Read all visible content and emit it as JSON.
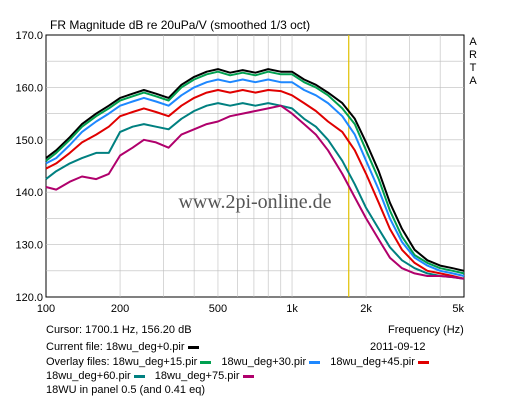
{
  "window": {
    "title": "FR Magnitude dB re 20uPa/V (smoothed 1/3 oct)",
    "side_tag": [
      "A",
      "R",
      "T",
      "A"
    ],
    "watermark": "www.2pi-online.de"
  },
  "footer": {
    "cursor": "Cursor: 1700.1 Hz, 156.20 dB",
    "xlabel": "Frequency (Hz)",
    "current_file_prefix": "Current file:",
    "date": "2011-09-12",
    "overlay_prefix": "Overlay files:",
    "info": "18WU in panel 0.5 (and 0.41 eq)"
  },
  "chart_data": {
    "type": "line",
    "title": "FR Magnitude dB re 20uPa/V (smoothed 1/3 oct)",
    "xlabel": "Frequency (Hz)",
    "ylabel": "",
    "x_scale": "log",
    "xlim": [
      100,
      5000
    ],
    "ylim": [
      120,
      170
    ],
    "grid": true,
    "x_ticks": [
      {
        "value": 100,
        "label": "100"
      },
      {
        "value": 200,
        "label": "200"
      },
      {
        "value": 500,
        "label": "500"
      },
      {
        "value": 1000,
        "label": "1k"
      },
      {
        "value": 2000,
        "label": "2k"
      },
      {
        "value": 5000,
        "label": "5k"
      }
    ],
    "y_ticks": [
      {
        "value": 120,
        "label": "120.0"
      },
      {
        "value": 130,
        "label": "130.0"
      },
      {
        "value": 140,
        "label": "140.0"
      },
      {
        "value": 150,
        "label": "150.0"
      },
      {
        "value": 160,
        "label": "160.0"
      },
      {
        "value": 170,
        "label": "170.0"
      }
    ],
    "cursor": {
      "x": 1700.1,
      "y": 156.2,
      "color": "#e0c000"
    },
    "x": [
      100,
      110,
      125,
      140,
      160,
      180,
      200,
      225,
      250,
      280,
      315,
      355,
      400,
      450,
      500,
      560,
      630,
      710,
      800,
      900,
      1000,
      1120,
      1250,
      1400,
      1600,
      1800,
      2000,
      2250,
      2500,
      2800,
      3150,
      3550,
      4000,
      4500,
      5000
    ],
    "series": [
      {
        "name": "18wu_deg+0.pir",
        "color": "#000000",
        "values": [
          146.5,
          148.0,
          150.5,
          153.0,
          155.0,
          156.5,
          158.0,
          158.8,
          159.5,
          158.8,
          158.0,
          160.5,
          162.0,
          163.0,
          163.5,
          162.8,
          163.3,
          162.8,
          163.5,
          163.0,
          163.0,
          161.5,
          160.5,
          159.0,
          157.0,
          154.0,
          149.5,
          144.0,
          138.0,
          133.0,
          129.0,
          127.0,
          126.0,
          125.5,
          125.0
        ]
      },
      {
        "name": "18wu_deg+15.pir",
        "color": "#00a050",
        "values": [
          146.0,
          147.5,
          150.0,
          152.5,
          154.5,
          156.0,
          157.5,
          158.3,
          159.0,
          158.3,
          157.5,
          160.0,
          161.5,
          162.5,
          163.0,
          162.3,
          162.8,
          162.3,
          163.0,
          162.5,
          162.5,
          161.0,
          160.0,
          158.5,
          156.0,
          153.0,
          148.0,
          142.5,
          136.5,
          131.5,
          128.0,
          126.5,
          125.5,
          125.0,
          124.5
        ]
      },
      {
        "name": "18wu_deg+30.pir",
        "color": "#1e88ff",
        "values": [
          145.5,
          146.5,
          149.0,
          151.5,
          153.5,
          155.0,
          156.5,
          157.3,
          158.0,
          157.3,
          156.5,
          158.5,
          160.0,
          161.0,
          161.5,
          161.0,
          161.5,
          161.0,
          161.5,
          161.0,
          161.0,
          159.5,
          158.5,
          157.0,
          154.5,
          151.0,
          146.0,
          140.5,
          135.0,
          130.5,
          127.5,
          126.0,
          125.0,
          124.5,
          124.0
        ]
      },
      {
        "name": "18wu_deg+45.pir",
        "color": "#e00000",
        "values": [
          144.5,
          145.5,
          147.5,
          149.5,
          151.0,
          152.5,
          154.5,
          155.3,
          156.0,
          155.3,
          154.5,
          156.5,
          158.0,
          159.0,
          159.5,
          159.0,
          159.5,
          159.0,
          159.5,
          159.3,
          158.5,
          157.0,
          155.5,
          153.5,
          151.5,
          148.0,
          143.5,
          138.0,
          133.0,
          129.0,
          126.5,
          125.0,
          124.5,
          124.0,
          123.5
        ]
      },
      {
        "name": "18wu_deg+60.pir",
        "color": "#008080",
        "values": [
          142.5,
          144.0,
          145.5,
          146.5,
          147.5,
          147.5,
          151.5,
          152.5,
          153.0,
          152.5,
          152.0,
          154.0,
          155.5,
          156.5,
          157.0,
          156.5,
          157.0,
          156.5,
          157.0,
          156.5,
          156.0,
          154.0,
          152.5,
          150.0,
          146.0,
          141.5,
          137.0,
          133.0,
          129.5,
          127.0,
          125.5,
          124.5,
          124.0,
          123.8,
          123.5
        ]
      },
      {
        "name": "18wu_deg+75.pir",
        "color": "#b0006c",
        "values": [
          141.0,
          140.5,
          142.0,
          143.0,
          142.5,
          143.5,
          147.0,
          148.5,
          150.0,
          149.5,
          148.5,
          151.0,
          152.0,
          153.0,
          153.5,
          154.5,
          155.0,
          155.5,
          156.0,
          156.5,
          155.0,
          153.0,
          151.0,
          148.0,
          143.5,
          139.0,
          135.0,
          131.0,
          127.5,
          125.5,
          124.5,
          124.0,
          124.0,
          123.8,
          123.5
        ]
      }
    ]
  }
}
